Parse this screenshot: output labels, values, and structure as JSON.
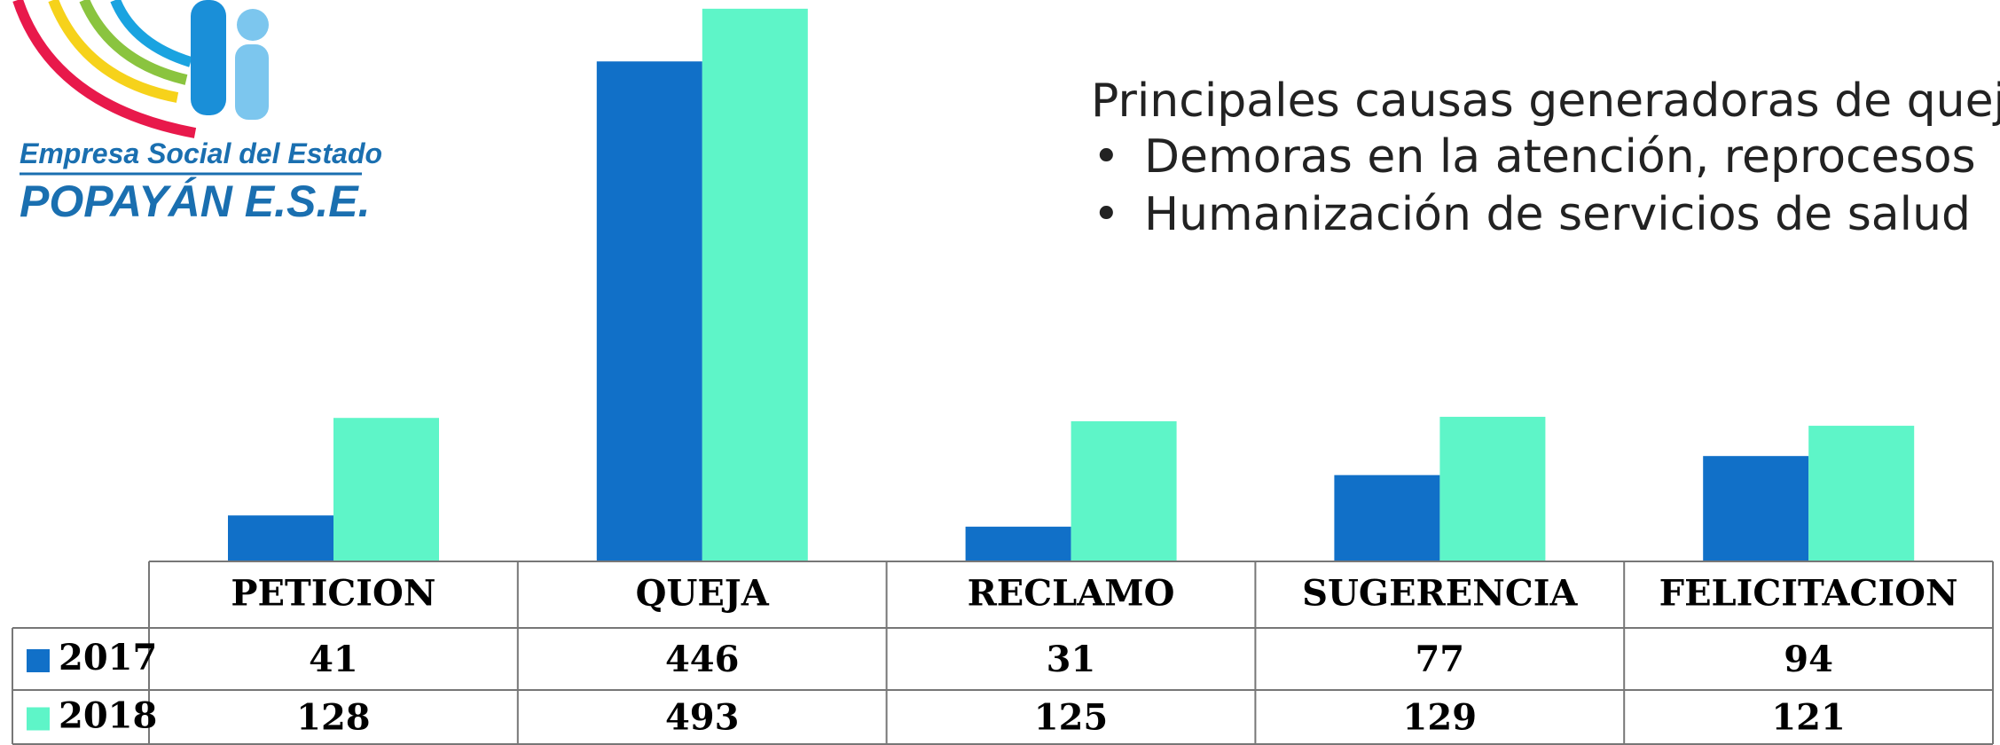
{
  "logo": {
    "line1": "Empresa Social del Estado",
    "line2": "POPAYÁN E.S.E."
  },
  "chart_data": {
    "type": "bar",
    "annotation": {
      "title": "Principales causas generadoras de quej",
      "bullets": [
        "Demoras en la atención, reprocesos",
        "Humanización de servicios de salud"
      ]
    },
    "categories": [
      "PETICION",
      "QUEJA",
      "RECLAMO",
      "SUGERENCIA",
      "FELICITACION"
    ],
    "series": [
      {
        "name": "2017",
        "color": "#1170c8",
        "values": [
          41,
          446,
          31,
          77,
          94
        ]
      },
      {
        "name": "2018",
        "color": "#5ef5c8",
        "values": [
          128,
          493,
          125,
          129,
          121
        ]
      }
    ],
    "ylim": [
      0,
      500
    ]
  }
}
